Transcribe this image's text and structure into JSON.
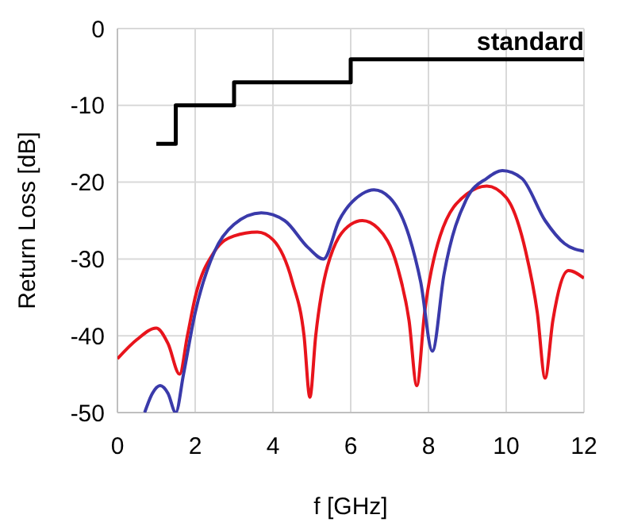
{
  "chart_data": {
    "type": "line",
    "xlabel": "f [GHz]",
    "ylabel": "Return Loss [dB]",
    "xlim": [
      0,
      12
    ],
    "ylim": [
      -50,
      0
    ],
    "xticks": [
      0,
      2,
      4,
      6,
      8,
      10,
      12
    ],
    "yticks": [
      -50,
      -40,
      -30,
      -20,
      -10,
      0
    ],
    "grid": true,
    "series": [
      {
        "name": "standard",
        "type": "step",
        "color": "#000000",
        "x": [
          1,
          1.5,
          3,
          6,
          12
        ],
        "values": [
          -15,
          -10,
          -7,
          -4,
          -4
        ]
      },
      {
        "color": "#e8141c",
        "x": [
          0,
          0.5,
          1,
          1.3,
          1.6,
          1.8,
          2,
          2.5,
          3,
          3.6,
          4,
          4.5,
          4.8,
          4.95,
          5.1,
          5.4,
          6,
          6.3,
          6.7,
          7.2,
          7.5,
          7.7,
          7.9,
          8.3,
          9,
          9.5,
          10,
          10.5,
          10.8,
          11,
          11.2,
          11.6,
          12
        ],
        "values": [
          -43,
          -40.5,
          -39,
          -41,
          -45,
          -40,
          -35,
          -29,
          -27,
          -26.5,
          -27.5,
          -33,
          -40,
          -48,
          -40,
          -31,
          -25.5,
          -25,
          -26,
          -31,
          -38,
          -46.5,
          -37,
          -27,
          -21.5,
          -20.5,
          -22,
          -29,
          -37,
          -45.5,
          -38,
          -31.5,
          -32.5
        ]
      },
      {
        "color": "#3a3aaa",
        "x": [
          0.7,
          0.9,
          1.1,
          1.3,
          1.5,
          1.7,
          2,
          2.5,
          3,
          3.7,
          4.3,
          4.9,
          5.3,
          5.7,
          6.3,
          6.6,
          7,
          7.5,
          7.8,
          8.1,
          8.4,
          9,
          9.5,
          9.9,
          10.4,
          11,
          11.5,
          12
        ],
        "values": [
          -50,
          -47.5,
          -46.5,
          -47.5,
          -50,
          -45,
          -37,
          -29,
          -25.5,
          -24,
          -25,
          -28.5,
          -30,
          -25,
          -21.5,
          -21,
          -22,
          -27,
          -33,
          -42,
          -32,
          -22,
          -19.5,
          -18.5,
          -19.5,
          -25,
          -28,
          -29
        ]
      }
    ]
  }
}
